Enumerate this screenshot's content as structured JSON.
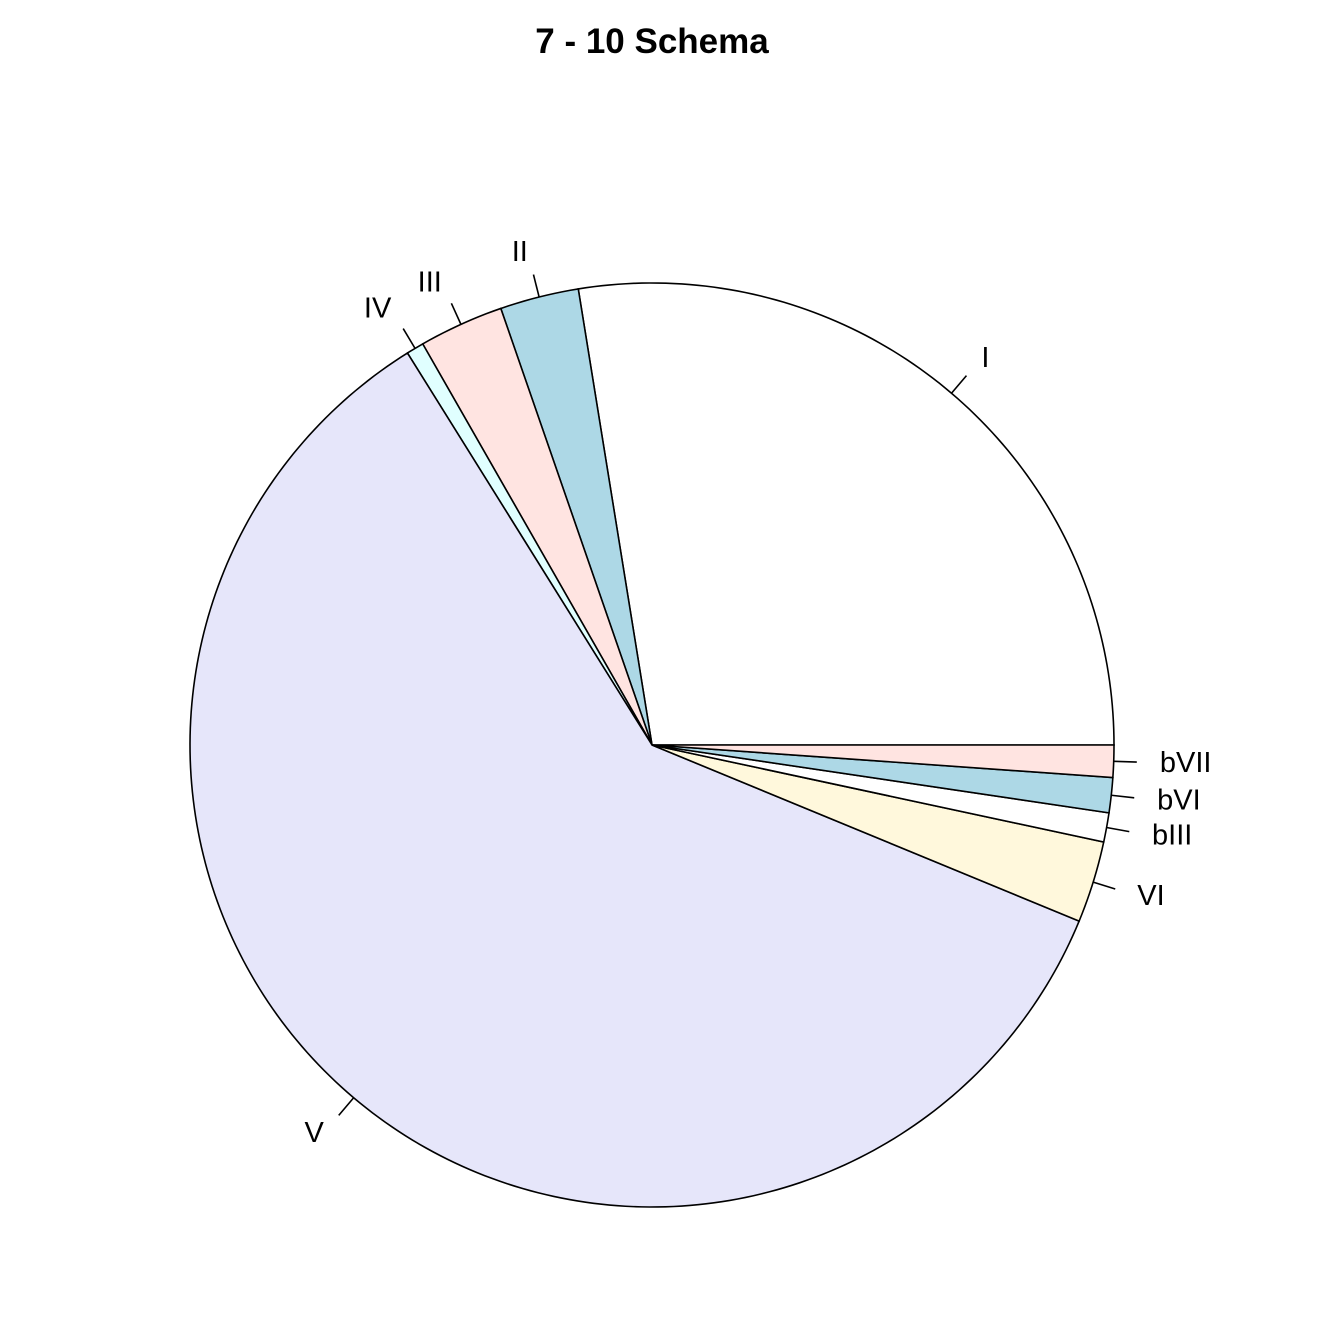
{
  "chart_data": {
    "type": "pie",
    "title": "7 - 10 Schema",
    "direction": "counterclockwise",
    "start_angle_deg": 0,
    "slices": [
      {
        "label": "I",
        "value": 27.0,
        "color": "#ffffff"
      },
      {
        "label": "II",
        "value": 2.7,
        "color": "#add8e6"
      },
      {
        "label": "III",
        "value": 2.9,
        "color": "#ffe4e1"
      },
      {
        "label": "IV",
        "value": 0.6,
        "color": "#e0ffff"
      },
      {
        "label": "V",
        "value": 58.7,
        "color": "#e6e6fa"
      },
      {
        "label": "VI",
        "value": 2.8,
        "color": "#fff8dc"
      },
      {
        "label": "bIII",
        "value": 1.0,
        "color": "#ffffff"
      },
      {
        "label": "bVI",
        "value": 1.2,
        "color": "#add8e6"
      },
      {
        "label": "bVII",
        "value": 1.1,
        "color": "#ffe4e1"
      }
    ]
  }
}
